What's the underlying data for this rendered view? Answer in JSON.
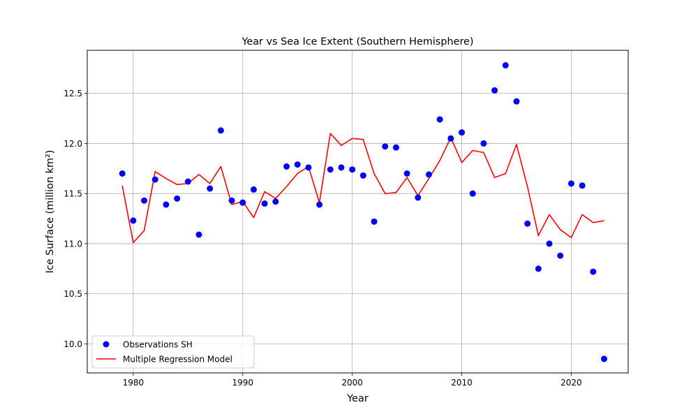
{
  "chart_data": {
    "type": "scatter",
    "title": "Year vs Sea Ice Extent (Southern Hemisphere)",
    "xlabel": "Year",
    "ylabel": "Ice Surface (million km²)",
    "xlim": [
      1975.8,
      2025.2
    ],
    "ylim": [
      9.71,
      12.93
    ],
    "xticks": [
      1980,
      1990,
      2000,
      2010,
      2020
    ],
    "yticks": [
      10.0,
      10.5,
      11.0,
      11.5,
      12.0,
      12.5
    ],
    "grid": true,
    "legend": "lower-left",
    "series": [
      {
        "name": "Observations SH",
        "type": "scatter",
        "color": "#0000ff",
        "x": [
          1979,
          1980,
          1981,
          1982,
          1983,
          1984,
          1985,
          1986,
          1987,
          1988,
          1989,
          1990,
          1991,
          1992,
          1993,
          1994,
          1995,
          1996,
          1997,
          1998,
          1999,
          2000,
          2001,
          2002,
          2003,
          2004,
          2005,
          2006,
          2007,
          2008,
          2009,
          2010,
          2011,
          2012,
          2013,
          2014,
          2015,
          2016,
          2017,
          2018,
          2019,
          2020,
          2021,
          2022,
          2023
        ],
        "values": [
          11.7,
          11.23,
          11.43,
          11.64,
          11.39,
          11.45,
          11.62,
          11.09,
          11.55,
          12.13,
          11.43,
          11.41,
          11.54,
          11.4,
          11.42,
          11.77,
          11.79,
          11.76,
          11.39,
          11.74,
          11.76,
          11.74,
          11.68,
          11.22,
          11.97,
          11.96,
          11.7,
          11.46,
          11.69,
          12.24,
          12.05,
          12.11,
          11.5,
          12.0,
          12.53,
          12.78,
          12.42,
          11.2,
          10.75,
          11.0,
          10.88,
          11.6,
          11.58,
          10.72,
          9.85
        ]
      },
      {
        "name": "Multiple Regression Model",
        "type": "line",
        "color": "#ff0000",
        "x": [
          1979,
          1980,
          1981,
          1982,
          1983,
          1984,
          1985,
          1986,
          1987,
          1988,
          1989,
          1990,
          1991,
          1992,
          1993,
          1994,
          1995,
          1996,
          1997,
          1998,
          1999,
          2000,
          2001,
          2002,
          2003,
          2004,
          2005,
          2006,
          2007,
          2008,
          2009,
          2010,
          2011,
          2012,
          2013,
          2014,
          2015,
          2016,
          2017,
          2018,
          2019,
          2020,
          2021,
          2022,
          2023
        ],
        "values": [
          11.58,
          11.01,
          11.13,
          11.72,
          11.65,
          11.59,
          11.6,
          11.69,
          11.6,
          11.77,
          11.39,
          11.42,
          11.26,
          11.52,
          11.45,
          11.57,
          11.7,
          11.77,
          11.41,
          12.1,
          11.98,
          12.05,
          12.04,
          11.7,
          11.5,
          11.51,
          11.66,
          11.48,
          11.65,
          11.83,
          12.06,
          11.81,
          11.93,
          11.91,
          11.66,
          11.7,
          11.99,
          11.57,
          11.08,
          11.29,
          11.14,
          11.06,
          11.29,
          11.21,
          11.23
        ]
      }
    ]
  }
}
